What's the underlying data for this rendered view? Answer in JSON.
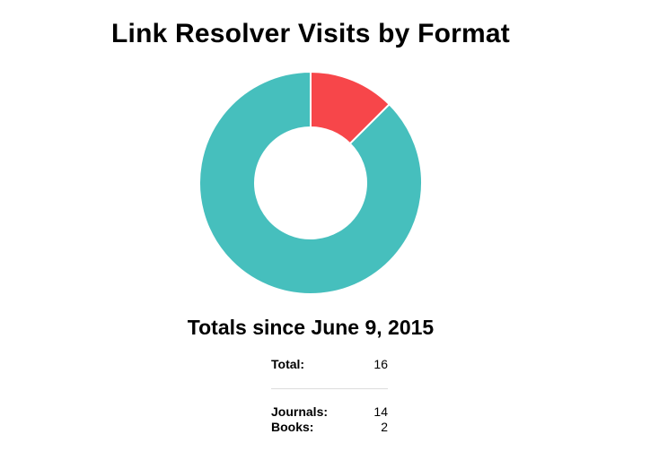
{
  "chart_data": {
    "type": "pie",
    "title": "Link Resolver Visits by Format",
    "categories": [
      "Journals",
      "Books"
    ],
    "values": [
      14,
      2
    ],
    "colors": [
      "#46bfbd",
      "#f7464a"
    ],
    "hole_ratio": 0.5
  },
  "subtitle": "Totals since June 9, 2015",
  "totals": {
    "total_label": "Total:",
    "total_value": "16",
    "rows": [
      {
        "label": "Journals:",
        "value": "14"
      },
      {
        "label": "Books:",
        "value": "2"
      }
    ]
  }
}
